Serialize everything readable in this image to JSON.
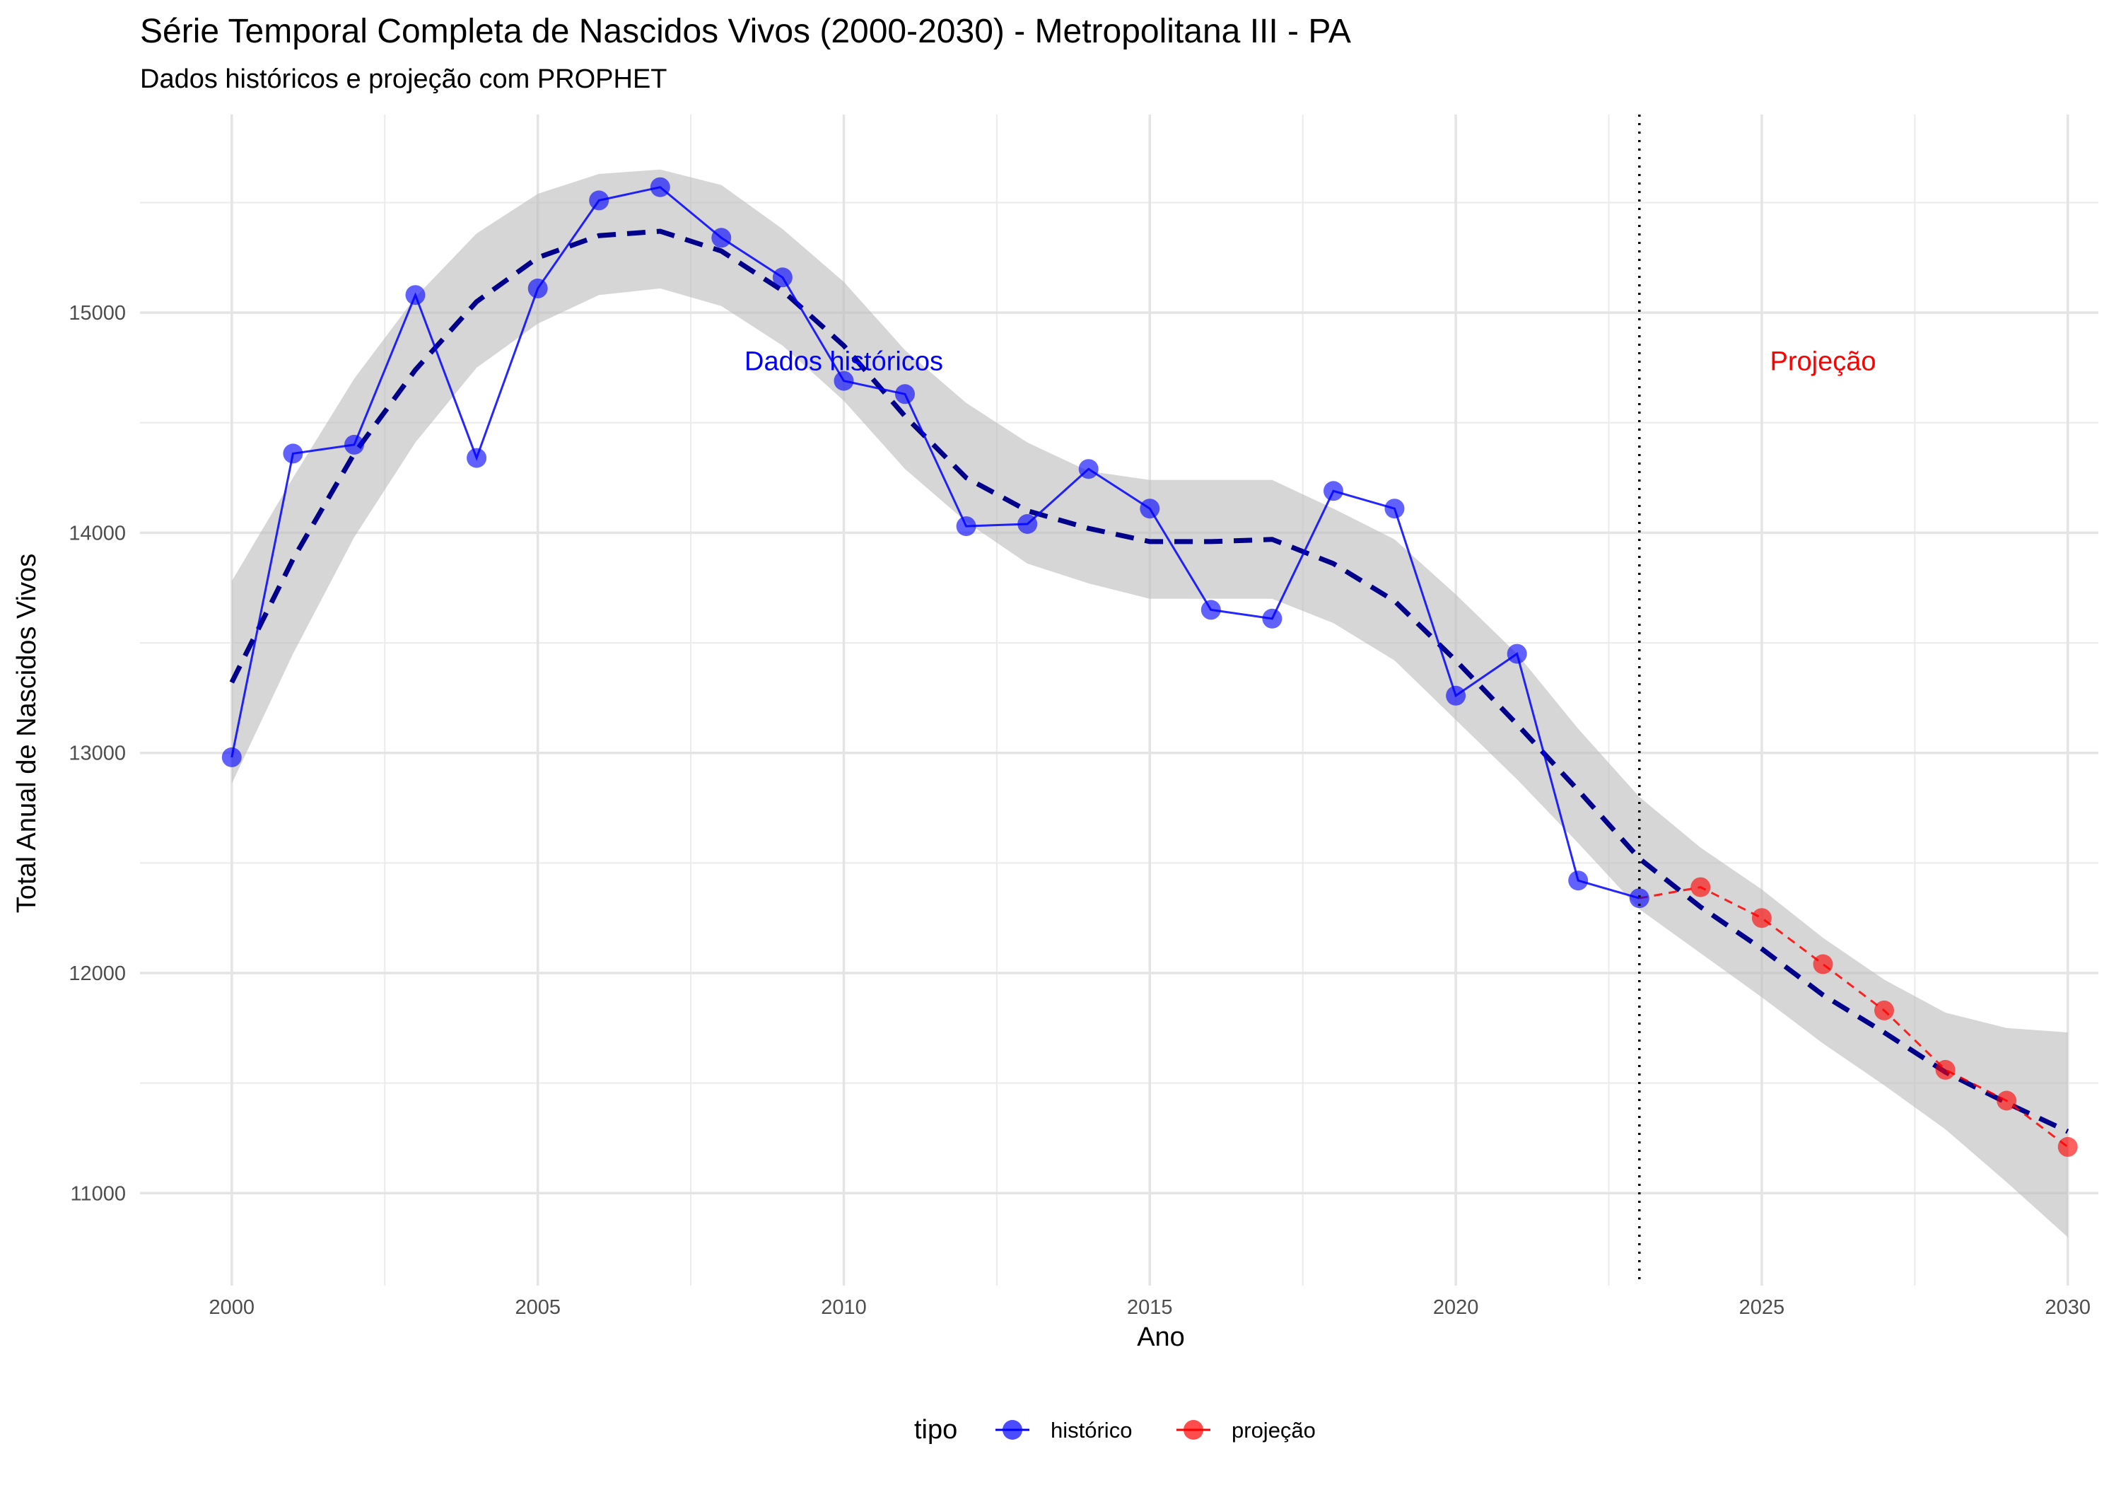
{
  "chart_data": {
    "type": "line",
    "title": "Série Temporal Completa de Nascidos Vivos (2000-2030) -  Metropolitana III - PA",
    "subtitle": "Dados históricos e projeção com PROPHET",
    "xlabel": "Ano",
    "ylabel": "Total Anual de Nascidos Vivos",
    "xlim": [
      1998.5,
      2030.5
    ],
    "ylim": [
      10580,
      15900
    ],
    "x_ticks": [
      2000,
      2005,
      2010,
      2015,
      2020,
      2025,
      2030
    ],
    "x_tick_labels": [
      "2000",
      "2005",
      "2010",
      "2015",
      "2020",
      "2025",
      "2030"
    ],
    "y_ticks": [
      11000,
      12000,
      13000,
      14000,
      15000
    ],
    "y_tick_labels": [
      "11000",
      "12000",
      "13000",
      "14000",
      "15000"
    ],
    "grid": true,
    "split_year": 2023,
    "annotations": [
      {
        "text": "Dados históricos",
        "x": 2010,
        "y": 14780,
        "color": "#0000ff"
      },
      {
        "text": "Projeção",
        "x": 2026,
        "y": 14780,
        "color": "#ff0000"
      }
    ],
    "series": [
      {
        "name": "histórico",
        "color": "#0000ff",
        "x": [
          2000,
          2001,
          2002,
          2003,
          2004,
          2005,
          2006,
          2007,
          2008,
          2009,
          2010,
          2011,
          2012,
          2013,
          2014,
          2015,
          2016,
          2017,
          2018,
          2019,
          2020,
          2021,
          2022,
          2023
        ],
        "values": [
          12980,
          14360,
          14400,
          15080,
          14340,
          15110,
          15510,
          15570,
          15340,
          15160,
          14690,
          14630,
          14030,
          14040,
          14290,
          14110,
          13650,
          13610,
          14190,
          14110,
          13260,
          13450,
          12420,
          12340
        ]
      },
      {
        "name": "projeção",
        "color": "#ff0000",
        "x": [
          2023,
          2024,
          2025,
          2026,
          2027,
          2028,
          2029,
          2030
        ],
        "values": [
          12340,
          12390,
          12250,
          12040,
          11830,
          11560,
          11420,
          11210
        ]
      }
    ],
    "trend": {
      "color": "#00008b",
      "x": [
        2000,
        2001,
        2002,
        2003,
        2004,
        2005,
        2006,
        2007,
        2008,
        2009,
        2010,
        2011,
        2012,
        2013,
        2014,
        2015,
        2016,
        2017,
        2018,
        2019,
        2020,
        2021,
        2022,
        2023,
        2024,
        2025,
        2026,
        2027,
        2028,
        2029,
        2030
      ],
      "values": [
        13320,
        13880,
        14360,
        14740,
        15050,
        15250,
        15350,
        15370,
        15280,
        15100,
        14850,
        14530,
        14250,
        14100,
        14020,
        13960,
        13960,
        13970,
        13860,
        13690,
        13420,
        13130,
        12830,
        12520,
        12300,
        12110,
        11900,
        11730,
        11550,
        11410,
        11280
      ],
      "lower": [
        12860,
        13450,
        13980,
        14410,
        14750,
        14950,
        15080,
        15110,
        15030,
        14850,
        14600,
        14290,
        14050,
        13860,
        13770,
        13700,
        13700,
        13700,
        13590,
        13420,
        13150,
        12880,
        12590,
        12290,
        12090,
        11890,
        11680,
        11490,
        11290,
        11050,
        10800
      ],
      "upper": [
        13780,
        14250,
        14700,
        15070,
        15360,
        15540,
        15630,
        15650,
        15580,
        15380,
        15140,
        14830,
        14590,
        14410,
        14280,
        14240,
        14240,
        14240,
        14110,
        13970,
        13720,
        13450,
        13110,
        12800,
        12570,
        12380,
        12160,
        11970,
        11820,
        11750,
        11730
      ]
    },
    "legend": {
      "title": "tipo",
      "position": "bottom",
      "entries": [
        {
          "label": "histórico",
          "color": "#0000ff"
        },
        {
          "label": "projeção",
          "color": "#ff0000"
        }
      ]
    }
  }
}
